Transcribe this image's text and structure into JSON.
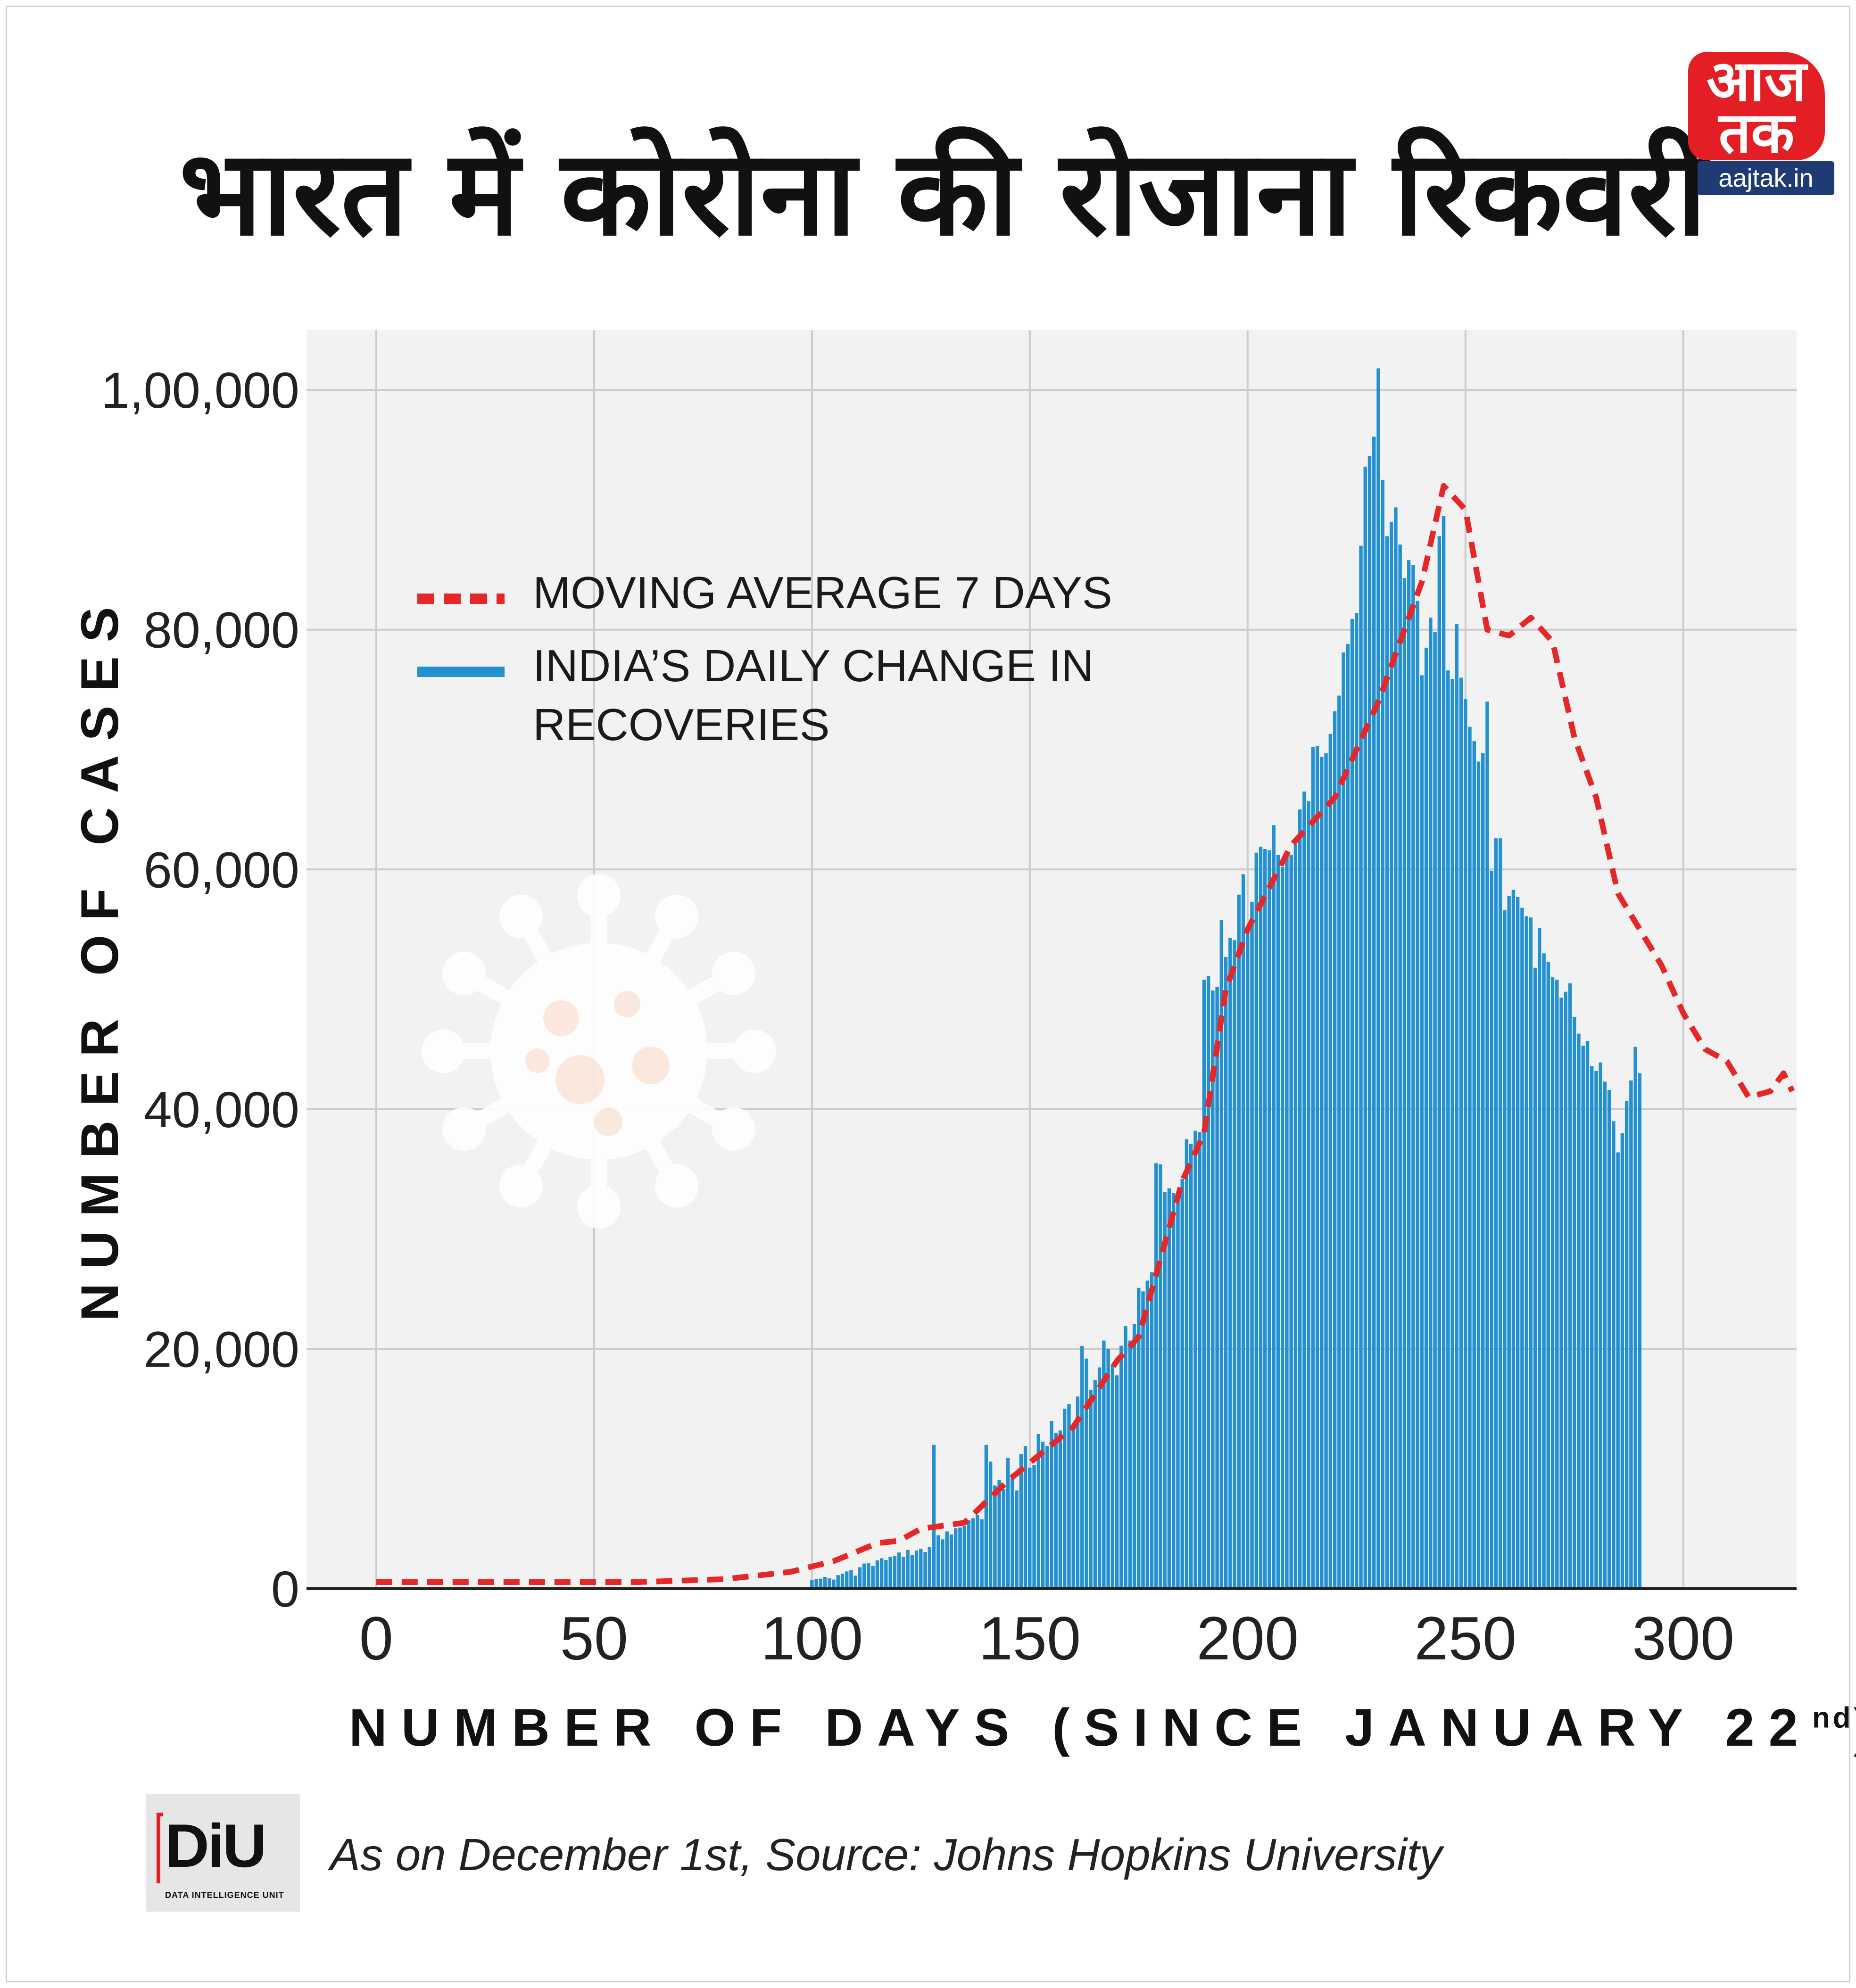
{
  "header": {
    "title": "भारत में कोरोना की रोजाना रिकवरी",
    "logo_text": "आज तक",
    "logo_url": "aajtak.in"
  },
  "footer": {
    "diu_text": "DiU",
    "diu_subtext": "DATA INTELLIGENCE UNIT",
    "source": "As on December 1st, Source: Johns Hopkins University"
  },
  "colors": {
    "bars": "#2390d0",
    "moving_average": "#e52727",
    "plot_background": "#f2f2f2",
    "gridlines": "#cccccc",
    "logo_red": "#e31e24",
    "logo_blue": "#1f3b73"
  },
  "chart_data": {
    "type": "bar",
    "title": "",
    "xlabel": "NUMBER OF DAYS (SINCE JANUARY 22",
    "xlabel_superscript": "nd",
    "xlabel_suffix": ")",
    "ylabel": "NUMBER OF CASES",
    "xlim": [
      -16,
      326
    ],
    "ylim": [
      0,
      105000
    ],
    "x_ticks": [
      0,
      50,
      100,
      150,
      200,
      250,
      300
    ],
    "x_tick_labels": [
      "0",
      "50",
      "100",
      "150",
      "200",
      "250",
      "300"
    ],
    "y_ticks": [
      0,
      20000,
      40000,
      60000,
      80000,
      100000
    ],
    "y_tick_labels": [
      "0",
      "20,000",
      "40,000",
      "60,000",
      "80,000",
      "1,00,000"
    ],
    "grid": true,
    "legend_position": "top-left",
    "legend": [
      {
        "label": "MOVING AVERAGE 7 DAYS",
        "style": "dashed-line"
      },
      {
        "label": "INDIA’S DAILY CHANGE IN",
        "label_line2": "RECOVERIES",
        "style": "bar"
      }
    ],
    "series": [
      {
        "name": "INDIA’S DAILY CHANGE IN RECOVERIES",
        "kind": "bar",
        "x_start": 0,
        "values": [
          0,
          0,
          0,
          0,
          0,
          0,
          0,
          0,
          0,
          0,
          0,
          0,
          0,
          0,
          0,
          0,
          0,
          0,
          0,
          0,
          0,
          0,
          0,
          0,
          0,
          0,
          0,
          0,
          0,
          0,
          0,
          0,
          0,
          0,
          0,
          0,
          0,
          0,
          0,
          0,
          0,
          0,
          0,
          0,
          0,
          0,
          0,
          0,
          0,
          0,
          0,
          0,
          0,
          0,
          0,
          0,
          0,
          0,
          0,
          0,
          0,
          0,
          0,
          0,
          0,
          0,
          0,
          0,
          0,
          0,
          0,
          0,
          0,
          0,
          0,
          0,
          0,
          0,
          0,
          0,
          0,
          0,
          0,
          0,
          0,
          0,
          0,
          0,
          0,
          0,
          0,
          0,
          0,
          0,
          0,
          0,
          0,
          0,
          0,
          0,
          730,
          820,
          840,
          980,
          860,
          760,
          1130,
          1260,
          1440,
          1540,
          1090,
          1790,
          2100,
          2120,
          1890,
          2360,
          2540,
          2390,
          2650,
          2710,
          3020,
          2650,
          3240,
          2790,
          3180,
          3320,
          3060,
          3480,
          12000,
          4460,
          4120,
          4780,
          4520,
          5050,
          5100,
          5230,
          5710,
          5880,
          6170,
          5800,
          12000,
          10600,
          8610,
          9050,
          8330,
          10900,
          9540,
          8200,
          11240,
          11900,
          10100,
          10300,
          12900,
          12270,
          11900,
          14000,
          13000,
          13200,
          15010,
          15400,
          13600,
          16030,
          20250,
          19200,
          16600,
          17400,
          18460,
          20700,
          20000,
          18700,
          17800,
          20270,
          21900,
          20700,
          22100,
          25100,
          24800,
          25700,
          26400,
          35500,
          35400,
          33100,
          33400,
          33000,
          32900,
          34200,
          37500,
          37100,
          38200,
          38100,
          50800,
          51100,
          49900,
          50200,
          55800,
          52700,
          54300,
          54100,
          57900,
          59600,
          55200,
          57300,
          61400,
          61900,
          61700,
          61600,
          63700,
          61200,
          60200,
          61300,
          61200,
          62100,
          65000,
          66500,
          65700,
          70200,
          70300,
          69400,
          69700,
          71300,
          73200,
          74500,
          78100,
          78800,
          80900,
          81400,
          87000,
          93600,
          94500,
          96100,
          101800,
          92500,
          87800,
          89000,
          90200,
          87100,
          84300,
          85800,
          85400,
          82400,
          76200,
          78500,
          81000,
          79800,
          87800,
          89500,
          76600,
          75900,
          80500,
          76000,
          74200,
          71900,
          70700,
          69000,
          69700,
          74000,
          59900,
          62600,
          62600,
          56600,
          57800,
          58300,
          57700,
          56800,
          56100,
          56000,
          51800,
          55100,
          53000,
          52300,
          51000,
          50800,
          49300,
          49800,
          50500,
          47700,
          46300,
          45300,
          45700,
          43600,
          43200,
          43900,
          42300,
          41600,
          39000,
          36400,
          38000,
          40700,
          42400,
          45200,
          43000
        ]
      },
      {
        "name": "MOVING AVERAGE 7 DAYS",
        "kind": "dashed-line",
        "points": [
          [
            0,
            550
          ],
          [
            30,
            550
          ],
          [
            60,
            550
          ],
          [
            80,
            800
          ],
          [
            95,
            1400
          ],
          [
            105,
            2300
          ],
          [
            115,
            3800
          ],
          [
            120,
            4000
          ],
          [
            125,
            5000
          ],
          [
            135,
            5500
          ],
          [
            145,
            9000
          ],
          [
            160,
            13500
          ],
          [
            170,
            19000
          ],
          [
            175,
            21000
          ],
          [
            185,
            34000
          ],
          [
            190,
            38000
          ],
          [
            195,
            50000
          ],
          [
            200,
            55000
          ],
          [
            210,
            62000
          ],
          [
            220,
            66000
          ],
          [
            230,
            74000
          ],
          [
            240,
            84000
          ],
          [
            245,
            92000
          ],
          [
            250,
            90000
          ],
          [
            255,
            80000
          ],
          [
            260,
            79500
          ],
          [
            265,
            81000
          ],
          [
            270,
            79000
          ],
          [
            275,
            71000
          ],
          [
            280,
            66000
          ],
          [
            285,
            58000
          ],
          [
            290,
            55000
          ],
          [
            295,
            52000
          ],
          [
            300,
            48000
          ],
          [
            305,
            45000
          ],
          [
            310,
            44000
          ],
          [
            315,
            41000
          ],
          [
            320,
            41500
          ],
          [
            323,
            43000
          ],
          [
            325,
            41500
          ]
        ]
      }
    ]
  }
}
